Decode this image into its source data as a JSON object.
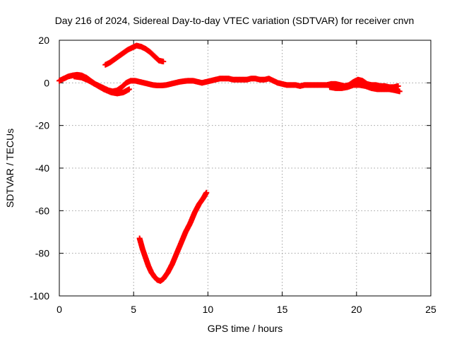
{
  "chart_data": {
    "type": "scatter",
    "title": "Day 216 of 2024, Sidereal Day-to-day VTEC variation (SDTVAR) for receiver cnvn",
    "xlabel": "GPS time / hours",
    "ylabel": "SDTVAR / TECUs",
    "xlim": [
      0,
      25
    ],
    "ylim": [
      -100,
      20
    ],
    "xticks": [
      0,
      5,
      10,
      15,
      20,
      25
    ],
    "yticks": [
      -100,
      -80,
      -60,
      -40,
      -20,
      0,
      20
    ],
    "grid": true,
    "legend": "none",
    "series_color": "#ff0000",
    "series": [
      {
        "name": "main-track",
        "x": [
          0.0,
          0.3,
          0.6,
          0.9,
          1.2,
          1.5,
          1.8,
          2.1,
          2.4,
          2.7,
          3.0,
          3.3,
          3.6,
          3.9,
          4.2,
          4.5,
          4.8,
          5.1,
          5.4,
          5.7,
          6.0,
          6.3,
          6.6,
          6.9,
          7.2,
          7.5,
          7.8,
          8.1,
          8.4,
          8.7,
          9.0,
          9.3,
          9.6,
          9.9,
          10.2,
          10.5,
          10.8,
          11.1,
          11.4,
          11.7,
          12.0,
          12.3,
          12.6,
          12.9,
          13.2,
          13.5,
          13.8,
          14.1,
          14.4,
          14.7,
          15.0,
          15.3,
          15.6,
          15.9,
          16.2,
          16.5,
          16.8,
          17.1,
          17.4,
          17.7,
          18.0,
          18.3,
          18.6,
          18.9,
          19.2,
          19.5,
          19.8,
          20.1,
          20.4,
          20.7,
          21.0,
          21.3,
          21.6,
          21.9,
          22.2,
          22.5,
          22.8
        ],
        "y": [
          1.0,
          2.0,
          3.0,
          3.5,
          3.8,
          3.5,
          2.5,
          1.0,
          -0.5,
          -1.5,
          -2.5,
          -3.5,
          -4.0,
          -3.5,
          -2.0,
          0.0,
          1.0,
          1.0,
          0.5,
          0.0,
          -0.5,
          -1.0,
          -1.2,
          -1.2,
          -1.0,
          -0.5,
          0.0,
          0.5,
          0.8,
          1.0,
          1.0,
          0.5,
          0.0,
          0.5,
          1.0,
          1.5,
          2.0,
          2.0,
          2.0,
          1.5,
          1.5,
          1.5,
          1.5,
          2.0,
          2.0,
          1.5,
          1.5,
          2.0,
          1.0,
          0.0,
          -0.5,
          -1.0,
          -1.0,
          -1.0,
          -1.5,
          -1.0,
          -1.0,
          -1.0,
          -1.0,
          -1.0,
          -1.0,
          -0.5,
          -0.5,
          -1.0,
          -1.5,
          -1.0,
          0.5,
          1.5,
          1.0,
          -0.5,
          -1.0,
          -1.0,
          -1.5,
          -1.5,
          -2.0,
          -2.0,
          -1.5
        ]
      },
      {
        "name": "dip-branch",
        "x": [
          1.0,
          1.5,
          2.0,
          2.5,
          3.0,
          3.5,
          3.9,
          4.3,
          4.7
        ],
        "y": [
          3.0,
          2.5,
          1.0,
          -1.0,
          -3.0,
          -4.5,
          -5.0,
          -4.5,
          -3.0
        ]
      },
      {
        "name": "late-lower-branch",
        "x": [
          18.2,
          18.6,
          19.0,
          19.4,
          19.8,
          20.2,
          20.6,
          21.0,
          21.4,
          21.8,
          22.2,
          22.6,
          22.9
        ],
        "y": [
          -2.0,
          -2.5,
          -2.5,
          -2.0,
          -1.0,
          -1.0,
          -1.5,
          -2.5,
          -3.0,
          -3.0,
          -3.0,
          -3.5,
          -4.0
        ]
      },
      {
        "name": "positive-arc",
        "x": [
          3.1,
          3.4,
          3.7,
          4.0,
          4.3,
          4.6,
          4.9,
          5.2,
          5.5,
          5.8,
          6.1,
          6.4,
          6.7,
          7.0
        ],
        "y": [
          8.5,
          9.5,
          11.0,
          12.5,
          14.0,
          15.5,
          16.5,
          17.5,
          17.0,
          16.0,
          14.5,
          12.5,
          10.5,
          10.0
        ]
      },
      {
        "name": "negative-v",
        "x": [
          5.4,
          5.6,
          5.8,
          6.0,
          6.2,
          6.4,
          6.6,
          6.8,
          7.0,
          7.3,
          7.6,
          7.9,
          8.2,
          8.5,
          8.8,
          9.1,
          9.4,
          9.7,
          9.9
        ],
        "y": [
          -73.0,
          -78.0,
          -82.0,
          -86.0,
          -89.0,
          -91.0,
          -92.5,
          -93.0,
          -92.0,
          -89.0,
          -85.0,
          -80.0,
          -75.0,
          -70.0,
          -66.0,
          -61.0,
          -57.0,
          -54.0,
          -51.5
        ]
      }
    ]
  }
}
